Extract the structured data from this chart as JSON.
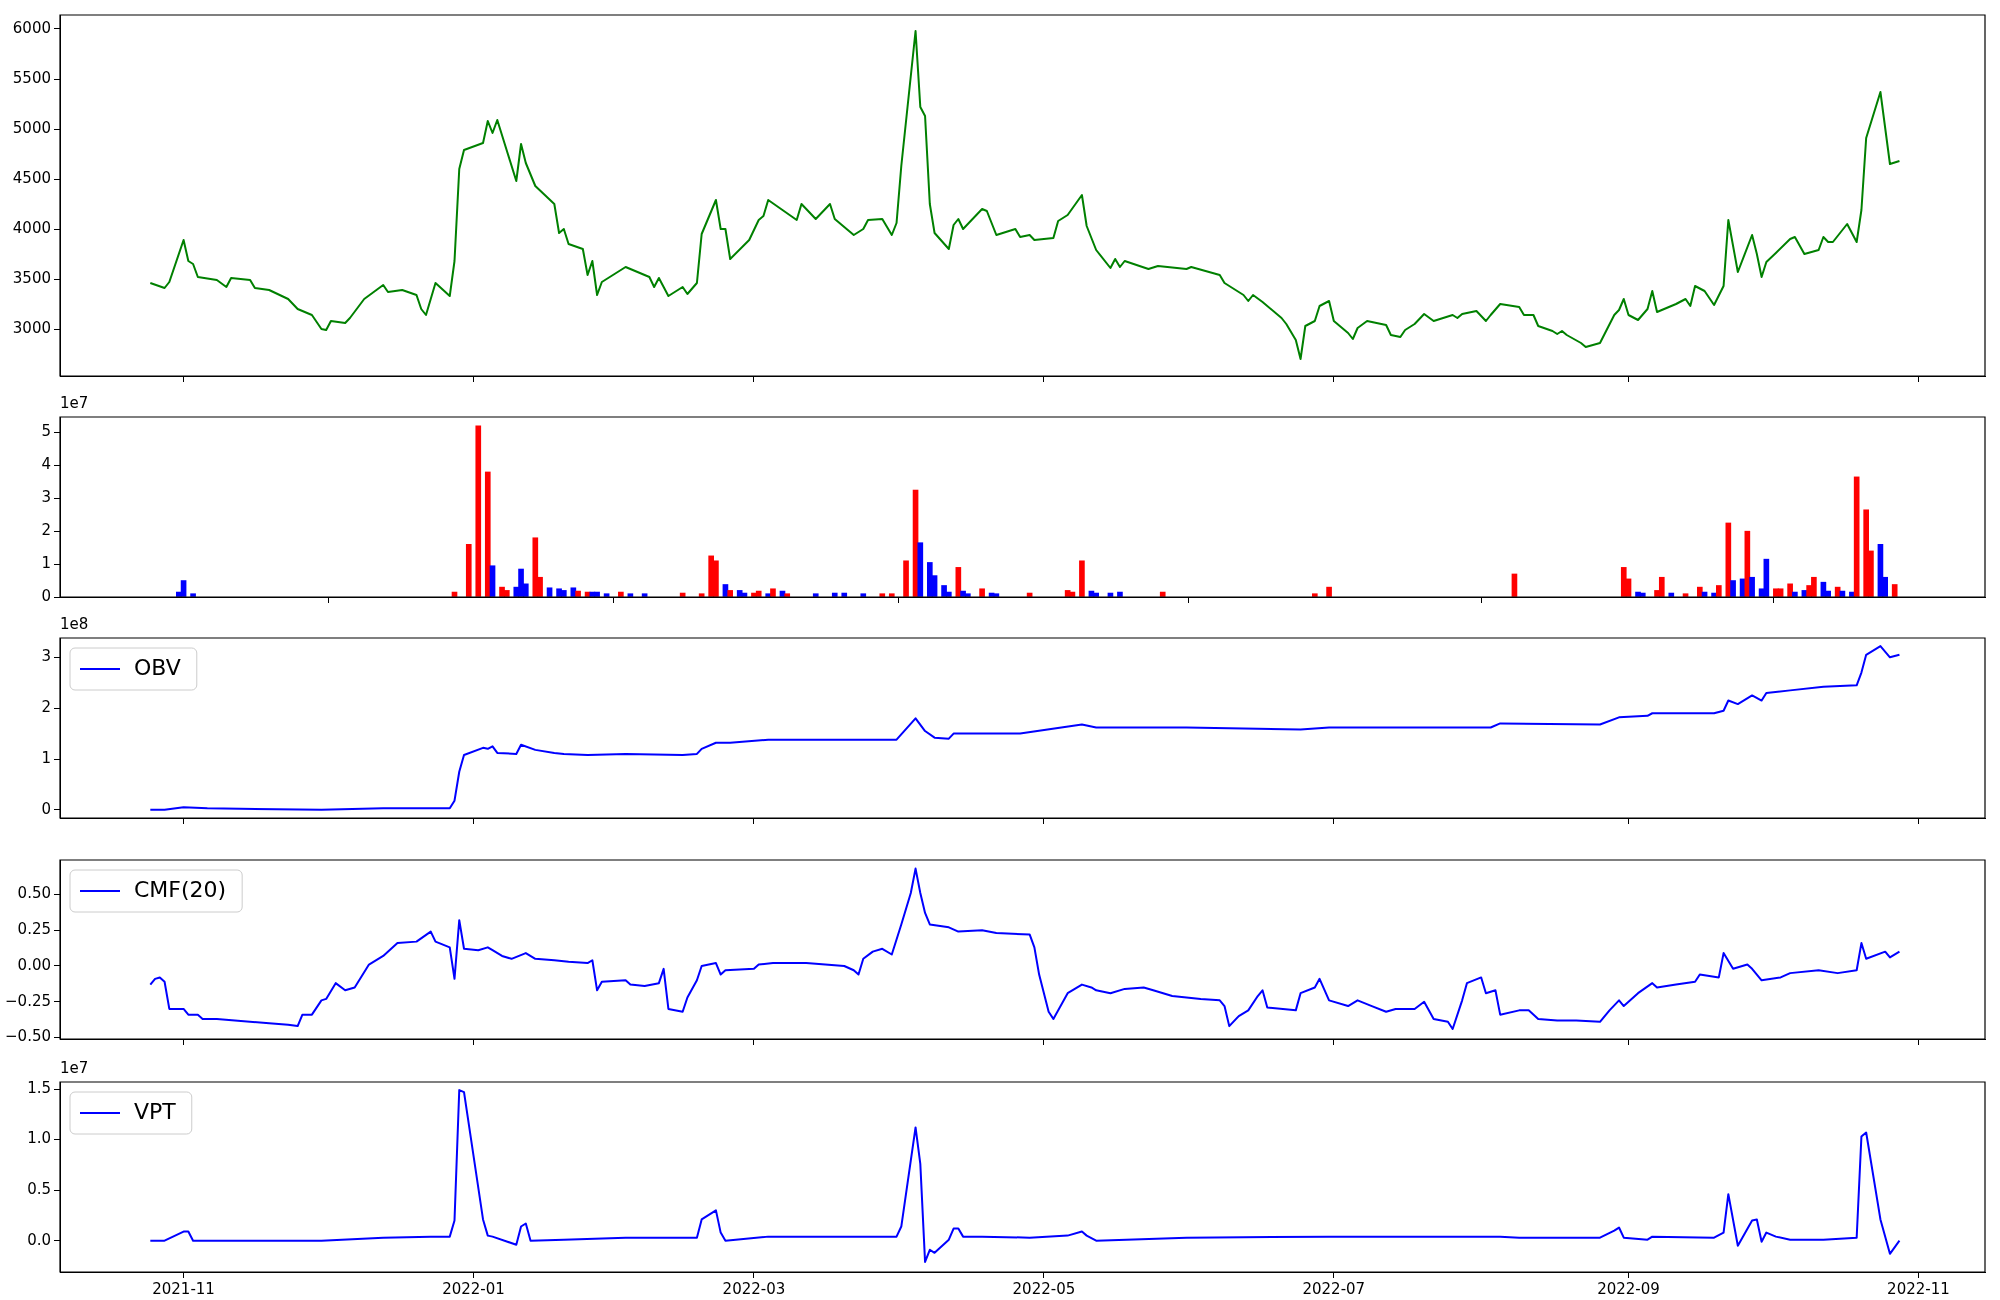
{
  "chart_data": [
    {
      "type": "line",
      "color": "#008000",
      "xlim": [
        "2021-10-06",
        "2022-11-15"
      ],
      "xticks": [
        "2021-11",
        "2022-01",
        "2022-03",
        "2022-05",
        "2022-07",
        "2022-09",
        "2022-11"
      ],
      "ylim": [
        2530,
        6140
      ],
      "yticks": [
        3000,
        3500,
        4000,
        4500,
        5000,
        5500,
        6000
      ],
      "tick_labels": "y",
      "x": [
        "2021-10-25",
        "2021-10-28",
        "2021-10-29",
        "2021-11-01",
        "2021-11-02",
        "2021-11-03",
        "2021-11-04",
        "2021-11-08",
        "2021-11-10",
        "2021-11-11",
        "2021-11-15",
        "2021-11-16",
        "2021-11-19",
        "2021-11-23",
        "2021-11-25",
        "2021-11-28",
        "2021-11-30",
        "2021-12-01",
        "2021-12-02",
        "2021-12-05",
        "2021-12-06",
        "2021-12-09",
        "2021-12-13",
        "2021-12-14",
        "2021-12-17",
        "2021-12-20",
        "2021-12-21",
        "2021-12-22",
        "2021-12-24",
        "2021-12-27",
        "2021-12-28",
        "2021-12-29",
        "2021-12-30",
        "2022-01-03",
        "2022-01-04",
        "2022-01-05",
        "2022-01-06",
        "2022-01-10",
        "2022-01-11",
        "2022-01-12",
        "2022-01-14",
        "2022-01-18",
        "2022-01-19",
        "2022-01-20",
        "2022-01-21",
        "2022-01-24",
        "2022-01-25",
        "2022-01-26",
        "2022-01-27",
        "2022-01-28",
        "2022-02-02",
        "2022-02-07",
        "2022-02-08",
        "2022-02-09",
        "2022-02-11",
        "2022-02-14",
        "2022-02-15",
        "2022-02-17",
        "2022-02-18",
        "2022-02-21",
        "2022-02-22",
        "2022-02-23",
        "2022-02-24",
        "2022-02-28",
        "2022-03-02",
        "2022-03-03",
        "2022-03-04",
        "2022-03-07",
        "2022-03-10",
        "2022-03-11",
        "2022-03-14",
        "2022-03-17",
        "2022-03-18",
        "2022-03-21",
        "2022-03-22",
        "2022-03-24",
        "2022-03-25",
        "2022-03-28",
        "2022-03-30",
        "2022-03-31",
        "2022-04-01",
        "2022-04-04",
        "2022-04-05",
        "2022-04-06",
        "2022-04-07",
        "2022-04-08",
        "2022-04-11",
        "2022-04-12",
        "2022-04-13",
        "2022-04-14",
        "2022-04-18",
        "2022-04-19",
        "2022-04-21",
        "2022-04-25",
        "2022-04-26",
        "2022-04-28",
        "2022-04-29",
        "2022-05-03",
        "2022-05-04",
        "2022-05-06",
        "2022-05-09",
        "2022-05-10",
        "2022-05-12",
        "2022-05-15",
        "2022-05-16",
        "2022-05-17",
        "2022-05-18",
        "2022-05-23",
        "2022-05-25",
        "2022-05-31",
        "2022-06-01",
        "2022-06-07",
        "2022-06-08",
        "2022-06-12",
        "2022-06-13",
        "2022-06-14",
        "2022-06-16",
        "2022-06-20",
        "2022-06-21",
        "2022-06-23",
        "2022-06-24",
        "2022-06-25",
        "2022-06-27",
        "2022-06-28",
        "2022-06-30",
        "2022-07-01",
        "2022-07-04",
        "2022-07-05",
        "2022-07-06",
        "2022-07-08",
        "2022-07-12",
        "2022-07-13",
        "2022-07-15",
        "2022-07-16",
        "2022-07-18",
        "2022-07-20",
        "2022-07-22",
        "2022-07-26",
        "2022-07-27",
        "2022-07-28",
        "2022-07-31",
        "2022-08-02",
        "2022-08-03",
        "2022-08-05",
        "2022-08-09",
        "2022-08-10",
        "2022-08-12",
        "2022-08-13",
        "2022-08-16",
        "2022-08-17",
        "2022-08-18",
        "2022-08-19",
        "2022-08-22",
        "2022-08-23",
        "2022-08-26",
        "2022-08-29",
        "2022-08-30",
        "2022-08-31",
        "2022-09-01",
        "2022-09-03",
        "2022-09-05",
        "2022-09-06",
        "2022-09-07",
        "2022-09-11",
        "2022-09-13",
        "2022-09-14",
        "2022-09-15",
        "2022-09-17",
        "2022-09-19",
        "2022-09-21",
        "2022-09-22",
        "2022-09-24",
        "2022-09-27",
        "2022-09-28",
        "2022-09-29",
        "2022-09-30",
        "2022-10-02",
        "2022-10-05",
        "2022-10-06",
        "2022-10-08",
        "2022-10-11",
        "2022-10-12",
        "2022-10-13",
        "2022-10-14",
        "2022-10-17",
        "2022-10-19",
        "2022-10-20",
        "2022-10-21",
        "2022-10-24",
        "2022-10-26",
        "2022-10-28"
      ],
      "values": [
        3460,
        3410,
        3470,
        3890,
        3680,
        3650,
        3520,
        3490,
        3420,
        3510,
        3490,
        3410,
        3390,
        3300,
        3200,
        3140,
        3000,
        2990,
        3080,
        3060,
        3110,
        3300,
        3440,
        3370,
        3390,
        3340,
        3200,
        3140,
        3460,
        3330,
        3680,
        4600,
        4790,
        4860,
        5080,
        4960,
        5090,
        4480,
        4850,
        4660,
        4430,
        4250,
        3960,
        4000,
        3850,
        3800,
        3540,
        3680,
        3340,
        3470,
        3620,
        3520,
        3420,
        3510,
        3330,
        3420,
        3350,
        3460,
        3950,
        4290,
        4000,
        4000,
        3700,
        3890,
        4090,
        4130,
        4290,
        4190,
        4090,
        4250,
        4100,
        4250,
        4100,
        3980,
        3940,
        4000,
        4090,
        4100,
        3940,
        4060,
        4630,
        5980,
        5220,
        5130,
        4250,
        3960,
        3800,
        4040,
        4100,
        4000,
        4200,
        4180,
        3940,
        4000,
        3920,
        3940,
        3890,
        3910,
        4080,
        4140,
        4340,
        4030,
        3790,
        3610,
        3700,
        3620,
        3680,
        3600,
        3630,
        3600,
        3620,
        3540,
        3460,
        3340,
        3280,
        3340,
        3270,
        3110,
        3050,
        2890,
        2700,
        3030,
        3080,
        3230,
        3280,
        3080,
        2960,
        2900,
        3010,
        3080,
        3040,
        2940,
        2920,
        2990,
        3050,
        3150,
        3080,
        3140,
        3110,
        3150,
        3180,
        3080,
        3140,
        3250,
        3220,
        3140,
        3140,
        3030,
        2980,
        2950,
        2980,
        2940,
        2860,
        2820,
        2860,
        3140,
        3190,
        3300,
        3140,
        3090,
        3200,
        3380,
        3170,
        3250,
        3300,
        3230,
        3430,
        3380,
        3240,
        3430,
        4090,
        3570,
        3940,
        3750,
        3520,
        3670,
        3760,
        3900,
        3920,
        3750,
        3790,
        3920,
        3870,
        3870,
        4050,
        3870,
        4190,
        4910,
        5370,
        4650,
        4680
      ]
    },
    {
      "type": "bar",
      "annotations": [
        "1e7"
      ],
      "xlim": [
        "2021-10-06",
        "2022-11-15"
      ],
      "xticks": [
        "2021-11",
        "2022-01",
        "2022-03",
        "2022-05",
        "2022-07",
        "2022-09",
        "2022-11"
      ],
      "ylim": [
        0,
        5.47
      ],
      "yticks": [
        0,
        1,
        2,
        3,
        4,
        5
      ],
      "tick_labels": "y",
      "x": [
        "2021-10-31",
        "2021-11-01",
        "2021-11-03",
        "2021-12-28",
        "2021-12-31",
        "2022-01-02",
        "2022-01-04",
        "2022-01-05",
        "2022-01-07",
        "2022-01-08",
        "2022-01-10",
        "2022-01-11",
        "2022-01-12",
        "2022-01-14",
        "2022-01-15",
        "2022-01-17",
        "2022-01-19",
        "2022-01-20",
        "2022-01-22",
        "2022-01-23",
        "2022-01-25",
        "2022-01-26",
        "2022-01-27",
        "2022-01-29",
        "2022-02-01",
        "2022-02-03",
        "2022-02-06",
        "2022-02-14",
        "2022-02-18",
        "2022-02-20",
        "2022-02-21",
        "2022-02-23",
        "2022-02-24",
        "2022-02-26",
        "2022-02-27",
        "2022-03-01",
        "2022-03-02",
        "2022-03-04",
        "2022-03-05",
        "2022-03-07",
        "2022-03-08",
        "2022-03-14",
        "2022-03-18",
        "2022-03-20",
        "2022-03-24",
        "2022-03-28",
        "2022-03-30",
        "2022-04-02",
        "2022-04-04",
        "2022-04-05",
        "2022-04-07",
        "2022-04-08",
        "2022-04-10",
        "2022-04-11",
        "2022-04-13",
        "2022-04-14",
        "2022-04-15",
        "2022-04-18",
        "2022-04-20",
        "2022-04-21",
        "2022-04-28",
        "2022-05-06",
        "2022-05-07",
        "2022-05-09",
        "2022-05-11",
        "2022-05-12",
        "2022-05-15",
        "2022-05-17",
        "2022-05-26",
        "2022-06-27",
        "2022-06-30",
        "2022-08-08",
        "2022-08-31",
        "2022-09-01",
        "2022-09-03",
        "2022-09-04",
        "2022-09-07",
        "2022-09-08",
        "2022-09-10",
        "2022-09-13",
        "2022-09-16",
        "2022-09-17",
        "2022-09-19",
        "2022-09-20",
        "2022-09-22",
        "2022-09-23",
        "2022-09-25",
        "2022-09-26",
        "2022-09-27",
        "2022-09-29",
        "2022-09-30",
        "2022-10-02",
        "2022-10-03",
        "2022-10-05",
        "2022-10-06",
        "2022-10-08",
        "2022-10-09",
        "2022-10-10",
        "2022-10-12",
        "2022-10-13",
        "2022-10-15",
        "2022-10-16",
        "2022-10-18",
        "2022-10-19",
        "2022-10-21",
        "2022-10-22",
        "2022-10-24",
        "2022-10-25",
        "2022-10-27"
      ],
      "values": [
        0.15,
        0.5,
        0.1,
        0.15,
        1.6,
        5.2,
        3.8,
        0.95,
        0.3,
        0.2,
        0.3,
        0.85,
        0.4,
        1.8,
        0.6,
        0.28,
        0.25,
        0.2,
        0.28,
        0.18,
        0.15,
        0.15,
        0.15,
        0.1,
        0.15,
        0.1,
        0.1,
        0.12,
        0.1,
        1.25,
        1.1,
        0.38,
        0.2,
        0.2,
        0.12,
        0.12,
        0.18,
        0.1,
        0.25,
        0.18,
        0.1,
        0.1,
        0.12,
        0.12,
        0.1,
        0.1,
        0.1,
        1.1,
        3.25,
        1.65,
        1.05,
        0.65,
        0.35,
        0.15,
        0.9,
        0.18,
        0.1,
        0.25,
        0.12,
        0.1,
        0.12,
        0.2,
        0.15,
        1.1,
        0.18,
        0.12,
        0.12,
        0.15,
        0.15,
        0.1,
        0.3,
        0.7,
        0.9,
        0.55,
        0.15,
        0.12,
        0.2,
        0.6,
        0.12,
        0.1,
        0.3,
        0.15,
        0.12,
        0.35,
        2.25,
        0.5,
        0.55,
        2.0,
        0.6,
        0.25,
        1.15,
        0.25,
        0.25,
        0.4,
        0.15,
        0.2,
        0.35,
        0.6,
        0.45,
        0.18,
        0.3,
        0.18,
        0.15,
        3.65,
        2.65,
        1.4,
        1.6,
        0.6,
        0.38
      ],
      "colors": [
        "#0000ff",
        "#0000ff",
        "#0000ff",
        "#ff0000",
        "#ff0000",
        "#ff0000",
        "#ff0000",
        "#0000ff",
        "#ff0000",
        "#ff0000",
        "#0000ff",
        "#0000ff",
        "#0000ff",
        "#ff0000",
        "#ff0000",
        "#0000ff",
        "#0000ff",
        "#0000ff",
        "#0000ff",
        "#ff0000",
        "#ff0000",
        "#0000ff",
        "#0000ff",
        "#0000ff",
        "#ff0000",
        "#0000ff",
        "#0000ff",
        "#ff0000",
        "#ff0000",
        "#ff0000",
        "#ff0000",
        "#0000ff",
        "#ff0000",
        "#0000ff",
        "#0000ff",
        "#ff0000",
        "#ff0000",
        "#0000ff",
        "#ff0000",
        "#0000ff",
        "#ff0000",
        "#0000ff",
        "#0000ff",
        "#0000ff",
        "#0000ff",
        "#ff0000",
        "#ff0000",
        "#ff0000",
        "#ff0000",
        "#0000ff",
        "#0000ff",
        "#0000ff",
        "#0000ff",
        "#0000ff",
        "#ff0000",
        "#0000ff",
        "#0000ff",
        "#ff0000",
        "#0000ff",
        "#0000ff",
        "#ff0000",
        "#ff0000",
        "#ff0000",
        "#ff0000",
        "#0000ff",
        "#0000ff",
        "#0000ff",
        "#0000ff",
        "#ff0000",
        "#ff0000",
        "#ff0000",
        "#ff0000",
        "#ff0000",
        "#ff0000",
        "#0000ff",
        "#0000ff",
        "#ff0000",
        "#ff0000",
        "#0000ff",
        "#ff0000",
        "#ff0000",
        "#0000ff",
        "#0000ff",
        "#ff0000",
        "#ff0000",
        "#0000ff",
        "#0000ff",
        "#ff0000",
        "#0000ff",
        "#0000ff",
        "#0000ff",
        "#ff0000",
        "#ff0000",
        "#ff0000",
        "#0000ff",
        "#0000ff",
        "#ff0000",
        "#ff0000",
        "#0000ff",
        "#0000ff",
        "#ff0000",
        "#0000ff",
        "#0000ff",
        "#ff0000",
        "#ff0000",
        "#ff0000",
        "#0000ff",
        "#0000ff",
        "#ff0000"
      ]
    },
    {
      "type": "line",
      "legend": "top left",
      "annotations": [
        "1e8"
      ],
      "xlim": [
        "2021-10-06",
        "2022-11-15"
      ],
      "xticks": [
        "2021-11",
        "2022-01",
        "2022-03",
        "2022-05",
        "2022-07",
        "2022-09",
        "2022-11"
      ],
      "ylim": [
        -0.16,
        3.38
      ],
      "yticks": [
        0,
        1,
        2,
        3
      ],
      "tick_labels": "y",
      "series": [
        {
          "name": "OBV",
          "color": "#0000ff",
          "x": [
            "2021-10-25",
            "2021-10-28",
            "2021-11-01",
            "2021-11-06",
            "2021-11-30",
            "2021-12-13",
            "2021-12-22",
            "2021-12-27",
            "2021-12-28",
            "2021-12-29",
            "2021-12-30",
            "2022-01-03",
            "2022-01-04",
            "2022-01-05",
            "2022-01-06",
            "2022-01-10",
            "2022-01-11",
            "2022-01-14",
            "2022-01-18",
            "2022-01-20",
            "2022-01-25",
            "2022-02-02",
            "2022-02-14",
            "2022-02-17",
            "2022-02-18",
            "2022-02-21",
            "2022-02-24",
            "2022-03-04",
            "2022-03-17",
            "2022-03-31",
            "2022-04-04",
            "2022-04-06",
            "2022-04-08",
            "2022-04-11",
            "2022-04-12",
            "2022-04-26",
            "2022-05-09",
            "2022-05-12",
            "2022-05-31",
            "2022-06-24",
            "2022-06-30",
            "2022-08-03",
            "2022-08-05",
            "2022-08-26",
            "2022-08-30",
            "2022-09-05",
            "2022-09-06",
            "2022-09-19",
            "2022-09-21",
            "2022-09-22",
            "2022-09-24",
            "2022-09-27",
            "2022-09-29",
            "2022-09-30",
            "2022-10-05",
            "2022-10-12",
            "2022-10-19",
            "2022-10-20",
            "2022-10-21",
            "2022-10-24",
            "2022-10-26",
            "2022-10-28"
          ],
          "values": [
            0,
            0,
            0.05,
            0.03,
            0,
            0.03,
            0.03,
            0.03,
            0.18,
            0.75,
            1.08,
            1.22,
            1.2,
            1.25,
            1.12,
            1.1,
            1.28,
            1.18,
            1.12,
            1.1,
            1.08,
            1.1,
            1.08,
            1.1,
            1.2,
            1.32,
            1.32,
            1.38,
            1.38,
            1.38,
            1.8,
            1.55,
            1.42,
            1.4,
            1.5,
            1.5,
            1.68,
            1.62,
            1.62,
            1.58,
            1.62,
            1.62,
            1.7,
            1.68,
            1.82,
            1.85,
            1.9,
            1.9,
            1.95,
            2.15,
            2.08,
            2.25,
            2.15,
            2.3,
            2.35,
            2.42,
            2.45,
            2.7,
            3.05,
            3.22,
            3.0,
            3.05
          ]
        }
      ]
    },
    {
      "type": "line",
      "legend": "top left",
      "xlim": [
        "2021-10-06",
        "2022-11-15"
      ],
      "xticks": [
        "2021-11",
        "2022-01",
        "2022-03",
        "2022-05",
        "2022-07",
        "2022-09",
        "2022-11"
      ],
      "ylim": [
        -0.51,
        0.74
      ],
      "yticks": [
        {
          "value": -0.5,
          "label": "−0.50"
        },
        {
          "value": -0.25,
          "label": "−0.25"
        },
        {
          "value": 0,
          "label": "0.00"
        },
        {
          "value": 0.25,
          "label": "0.25"
        },
        {
          "value": 0.5,
          "label": "0.50"
        }
      ],
      "tick_labels": "y",
      "series": [
        {
          "name": "CMF(20)",
          "color": "#0000ff",
          "x": [
            "2021-10-25",
            "2021-10-26",
            "2021-10-27",
            "2021-10-28",
            "2021-10-29",
            "2021-11-01",
            "2021-11-02",
            "2021-11-04",
            "2021-11-05",
            "2021-11-08",
            "2021-11-19",
            "2021-11-23",
            "2021-11-25",
            "2021-11-26",
            "2021-11-28",
            "2021-11-30",
            "2021-12-01",
            "2021-12-03",
            "2021-12-05",
            "2021-12-07",
            "2021-12-10",
            "2021-12-13",
            "2021-12-16",
            "2021-12-20",
            "2021-12-23",
            "2021-12-24",
            "2021-12-27",
            "2021-12-28",
            "2021-12-29",
            "2021-12-30",
            "2022-01-02",
            "2022-01-04",
            "2022-01-05",
            "2022-01-07",
            "2022-01-09",
            "2022-01-12",
            "2022-01-14",
            "2022-01-18",
            "2022-01-21",
            "2022-01-25",
            "2022-01-26",
            "2022-01-27",
            "2022-01-28",
            "2022-02-02",
            "2022-02-03",
            "2022-02-06",
            "2022-02-09",
            "2022-02-10",
            "2022-02-11",
            "2022-02-14",
            "2022-02-15",
            "2022-02-17",
            "2022-02-18",
            "2022-02-21",
            "2022-02-22",
            "2022-02-23",
            "2022-03-01",
            "2022-03-02",
            "2022-03-05",
            "2022-03-12",
            "2022-03-20",
            "2022-03-22",
            "2022-03-23",
            "2022-03-24",
            "2022-03-26",
            "2022-03-28",
            "2022-03-30",
            "2022-04-01",
            "2022-04-03",
            "2022-04-04",
            "2022-04-05",
            "2022-04-06",
            "2022-04-07",
            "2022-04-11",
            "2022-04-13",
            "2022-04-18",
            "2022-04-21",
            "2022-04-28",
            "2022-04-29",
            "2022-04-30",
            "2022-05-02",
            "2022-05-03",
            "2022-05-06",
            "2022-05-09",
            "2022-05-11",
            "2022-05-12",
            "2022-05-15",
            "2022-05-18",
            "2022-05-22",
            "2022-05-24",
            "2022-05-28",
            "2022-06-03",
            "2022-06-07",
            "2022-06-08",
            "2022-06-09",
            "2022-06-11",
            "2022-06-13",
            "2022-06-15",
            "2022-06-16",
            "2022-06-17",
            "2022-06-23",
            "2022-06-24",
            "2022-06-27",
            "2022-06-28",
            "2022-06-30",
            "2022-07-04",
            "2022-07-06",
            "2022-07-09",
            "2022-07-12",
            "2022-07-14",
            "2022-07-18",
            "2022-07-20",
            "2022-07-22",
            "2022-07-25",
            "2022-07-26",
            "2022-07-28",
            "2022-07-29",
            "2022-08-01",
            "2022-08-02",
            "2022-08-04",
            "2022-08-05",
            "2022-08-09",
            "2022-08-11",
            "2022-08-13",
            "2022-08-17",
            "2022-08-21",
            "2022-08-26",
            "2022-08-28",
            "2022-08-30",
            "2022-08-31",
            "2022-09-03",
            "2022-09-06",
            "2022-09-07",
            "2022-09-11",
            "2022-09-15",
            "2022-09-16",
            "2022-09-20",
            "2022-09-21",
            "2022-09-23",
            "2022-09-26",
            "2022-09-27",
            "2022-09-29",
            "2022-10-03",
            "2022-10-05",
            "2022-10-11",
            "2022-10-15",
            "2022-10-19",
            "2022-10-20",
            "2022-10-21",
            "2022-10-25",
            "2022-10-26",
            "2022-10-28"
          ],
          "values": [
            -0.13,
            -0.09,
            -0.08,
            -0.11,
            -0.3,
            -0.3,
            -0.34,
            -0.34,
            -0.37,
            -0.37,
            -0.4,
            -0.41,
            -0.42,
            -0.34,
            -0.34,
            -0.24,
            -0.23,
            -0.12,
            -0.17,
            -0.15,
            0.01,
            0.07,
            0.16,
            0.17,
            0.24,
            0.17,
            0.13,
            -0.09,
            0.32,
            0.12,
            0.11,
            0.13,
            0.11,
            0.07,
            0.05,
            0.09,
            0.05,
            0.04,
            0.03,
            0.02,
            0.04,
            -0.17,
            -0.11,
            -0.1,
            -0.13,
            -0.14,
            -0.12,
            -0.02,
            -0.3,
            -0.32,
            -0.22,
            -0.1,
            0,
            0.02,
            -0.06,
            -0.03,
            -0.02,
            0.01,
            0.02,
            0.02,
            0,
            -0.03,
            -0.06,
            0.05,
            0.1,
            0.12,
            0.08,
            0.29,
            0.51,
            0.68,
            0.51,
            0.37,
            0.29,
            0.27,
            0.24,
            0.25,
            0.23,
            0.22,
            0.13,
            -0.06,
            -0.32,
            -0.37,
            -0.19,
            -0.13,
            -0.15,
            -0.17,
            -0.19,
            -0.16,
            -0.15,
            -0.17,
            -0.21,
            -0.23,
            -0.24,
            -0.28,
            -0.42,
            -0.35,
            -0.31,
            -0.21,
            -0.17,
            -0.29,
            -0.31,
            -0.19,
            -0.15,
            -0.09,
            -0.24,
            -0.28,
            -0.24,
            -0.28,
            -0.32,
            -0.3,
            -0.3,
            -0.25,
            -0.37,
            -0.39,
            -0.44,
            -0.24,
            -0.12,
            -0.08,
            -0.19,
            -0.17,
            -0.34,
            -0.31,
            -0.31,
            -0.37,
            -0.38,
            -0.38,
            -0.39,
            -0.31,
            -0.24,
            -0.28,
            -0.19,
            -0.12,
            -0.15,
            -0.13,
            -0.11,
            -0.06,
            -0.08,
            0.09,
            -0.02,
            0.01,
            -0.02,
            -0.1,
            -0.08,
            -0.05,
            -0.03,
            -0.05,
            -0.03,
            0.16,
            0.05,
            0.1,
            0.06,
            0.1
          ]
        }
      ]
    },
    {
      "type": "line",
      "legend": "top left",
      "annotations": [
        "1e7"
      ],
      "xlim": [
        "2021-10-06",
        "2022-11-15"
      ],
      "xticks": [
        "2021-11",
        "2022-01",
        "2022-03",
        "2022-05",
        "2022-07",
        "2022-09",
        "2022-11"
      ],
      "ylim": [
        -0.31,
        1.57
      ],
      "yticks": [
        {
          "value": 0,
          "label": "0.0"
        },
        {
          "value": 0.5,
          "label": "0.5"
        },
        {
          "value": 1,
          "label": "1.0"
        },
        {
          "value": 1.5,
          "label": "1.5"
        }
      ],
      "series": [
        {
          "name": "VPT",
          "color": "#0000ff",
          "x": [
            "2021-10-25",
            "2021-10-28",
            "2021-11-01",
            "2021-11-02",
            "2021-11-03",
            "2021-11-30",
            "2021-12-13",
            "2021-12-23",
            "2021-12-27",
            "2021-12-28",
            "2021-12-29",
            "2021-12-30",
            "2022-01-03",
            "2022-01-04",
            "2022-01-05",
            "2022-01-10",
            "2022-01-11",
            "2022-01-12",
            "2022-01-13",
            "2022-01-20",
            "2022-02-02",
            "2022-02-17",
            "2022-02-18",
            "2022-02-21",
            "2022-02-22",
            "2022-02-23",
            "2022-03-04",
            "2022-03-31",
            "2022-04-01",
            "2022-04-04",
            "2022-04-05",
            "2022-04-06",
            "2022-04-07",
            "2022-04-08",
            "2022-04-11",
            "2022-04-12",
            "2022-04-13",
            "2022-04-14",
            "2022-04-18",
            "2022-04-28",
            "2022-05-06",
            "2022-05-09",
            "2022-05-10",
            "2022-05-12",
            "2022-05-31",
            "2022-06-30",
            "2022-08-05",
            "2022-08-09",
            "2022-08-26",
            "2022-08-29",
            "2022-08-30",
            "2022-08-31",
            "2022-09-05",
            "2022-09-06",
            "2022-09-19",
            "2022-09-21",
            "2022-09-22",
            "2022-09-24",
            "2022-09-27",
            "2022-09-28",
            "2022-09-29",
            "2022-09-30",
            "2022-10-02",
            "2022-10-05",
            "2022-10-12",
            "2022-10-19",
            "2022-10-20",
            "2022-10-21",
            "2022-10-24",
            "2022-10-26",
            "2022-10-28"
          ],
          "values": [
            0,
            0,
            0.09,
            0.09,
            0,
            0,
            0.03,
            0.04,
            0.04,
            0.2,
            1.49,
            1.47,
            0.21,
            0.05,
            0.04,
            -0.04,
            0.14,
            0.17,
            0,
            0.01,
            0.03,
            0.03,
            0.21,
            0.3,
            0.08,
            0,
            0.04,
            0.04,
            0.14,
            1.12,
            0.76,
            -0.21,
            -0.09,
            -0.12,
            0.01,
            0.12,
            0.12,
            0.04,
            0.04,
            0.03,
            0.05,
            0.09,
            0.05,
            0,
            0.03,
            0.04,
            0.04,
            0.03,
            0.03,
            0.1,
            0.13,
            0.03,
            0.01,
            0.04,
            0.03,
            0.08,
            0.46,
            -0.05,
            0.2,
            0.21,
            -0.01,
            0.08,
            0.04,
            0.01,
            0.01,
            0.03,
            1.03,
            1.07,
            0.21,
            -0.13,
            0
          ]
        }
      ]
    }
  ]
}
